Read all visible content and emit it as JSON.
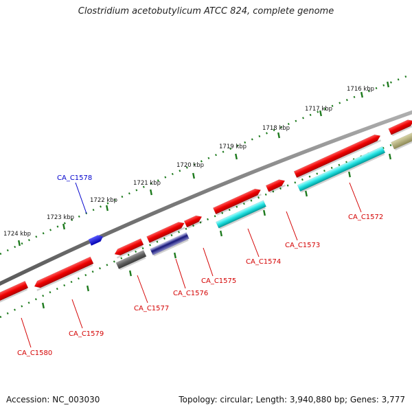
{
  "title": "Clostridium acetobutylicum ATCC 824, complete genome",
  "footer": {
    "accession": "Accession: NC_003030",
    "summary": "Topology: circular; Length: 3,940,880 bp; Genes: 3,777"
  },
  "scale_labels": [
    "1716 kbp",
    "1717 kbp",
    "1718 kbp",
    "1719 kbp",
    "1720 kbp",
    "1721 kbp",
    "1722 kbp",
    "1723 kbp",
    "1724 kbp"
  ],
  "gene_labels": [
    "CA_C1572",
    "CA_C1573",
    "CA_C1574",
    "CA_C1575",
    "CA_C1576",
    "CA_C1577",
    "CA_C1578",
    "CA_C1579",
    "CA_C1580"
  ],
  "colors": {
    "backbone": "#7a7a7a",
    "scale_ticks": "#1d7a1d",
    "gene": "#ff0000",
    "gene_label": "#d40000",
    "highlight_label": "#0000cc",
    "cyan_feature": "#00ffff",
    "gray_feature": "#6a6a6a",
    "blue_feature": "#1010ee",
    "navy_feature": "#2a2a9a",
    "olive_feature": "#b5b07a"
  }
}
